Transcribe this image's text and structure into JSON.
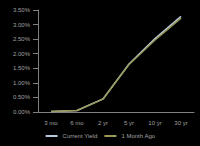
{
  "chart_data": {
    "type": "line",
    "categories": [
      "3 mo",
      "6 mo",
      "2 yr",
      "5 yr",
      "10 yr",
      "30 yr"
    ],
    "series": [
      {
        "name": "Current Yield",
        "color": "#b8c8dc",
        "values": [
          0.02,
          0.05,
          0.45,
          1.65,
          2.52,
          3.28
        ]
      },
      {
        "name": "1 Month Ago",
        "color": "#9a9a5a",
        "values": [
          0.02,
          0.05,
          0.44,
          1.63,
          2.47,
          3.22
        ]
      }
    ],
    "ylim": [
      0,
      3.5
    ],
    "yticks": [
      {
        "value": 0,
        "label": "0.00%"
      },
      {
        "value": 0.5,
        "label": "0.50%"
      },
      {
        "value": 1,
        "label": "1.00%"
      },
      {
        "value": 1.5,
        "label": "1.50%"
      },
      {
        "value": 2,
        "label": "2.00%"
      },
      {
        "value": 2.5,
        "label": "2.50%"
      },
      {
        "value": 3,
        "label": "3.00%"
      },
      {
        "value": 3.5,
        "label": "3.50%"
      }
    ],
    "grid": false,
    "legend": "bottom"
  }
}
